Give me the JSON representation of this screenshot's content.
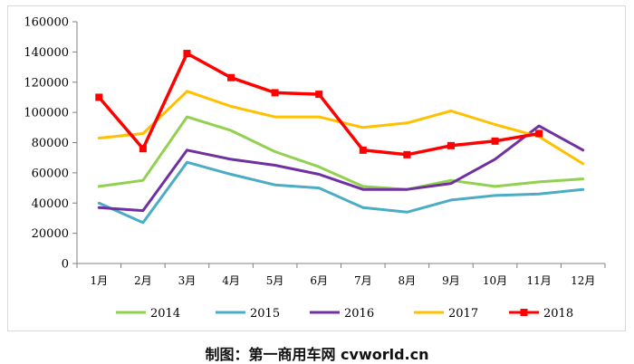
{
  "chart_data": {
    "type": "line",
    "title": "",
    "xlabel": "",
    "ylabel": "",
    "categories": [
      "1月",
      "2月",
      "3月",
      "4月",
      "5月",
      "6月",
      "7月",
      "8月",
      "9月",
      "10月",
      "11月",
      "12月"
    ],
    "ylim": [
      0,
      160000
    ],
    "yticks": [
      0,
      20000,
      40000,
      60000,
      80000,
      100000,
      120000,
      140000,
      160000
    ],
    "grid": false,
    "legend_position": "bottom",
    "series": [
      {
        "name": "2014",
        "color": "#92d050",
        "marker": "none",
        "values": [
          51000,
          55000,
          97000,
          88000,
          74000,
          64000,
          51000,
          49000,
          55000,
          51000,
          54000,
          56000
        ]
      },
      {
        "name": "2015",
        "color": "#4bacc6",
        "marker": "none",
        "values": [
          40000,
          27000,
          67000,
          59000,
          52000,
          50000,
          37000,
          34000,
          42000,
          45000,
          46000,
          49000
        ]
      },
      {
        "name": "2016",
        "color": "#7030a0",
        "marker": "none",
        "values": [
          37000,
          35000,
          75000,
          69000,
          65000,
          59000,
          49000,
          49000,
          53000,
          69000,
          91000,
          75000
        ]
      },
      {
        "name": "2017",
        "color": "#ffc000",
        "marker": "none",
        "values": [
          83000,
          86000,
          114000,
          104000,
          97000,
          97000,
          90000,
          93000,
          101000,
          92000,
          84000,
          66000
        ]
      },
      {
        "name": "2018",
        "color": "#ff0000",
        "marker": "square",
        "values": [
          110000,
          76000,
          139000,
          123000,
          113000,
          112000,
          75000,
          72000,
          78000,
          81000,
          86000,
          null
        ]
      }
    ]
  },
  "caption": "制图：第一商用车网 cvworld.cn"
}
